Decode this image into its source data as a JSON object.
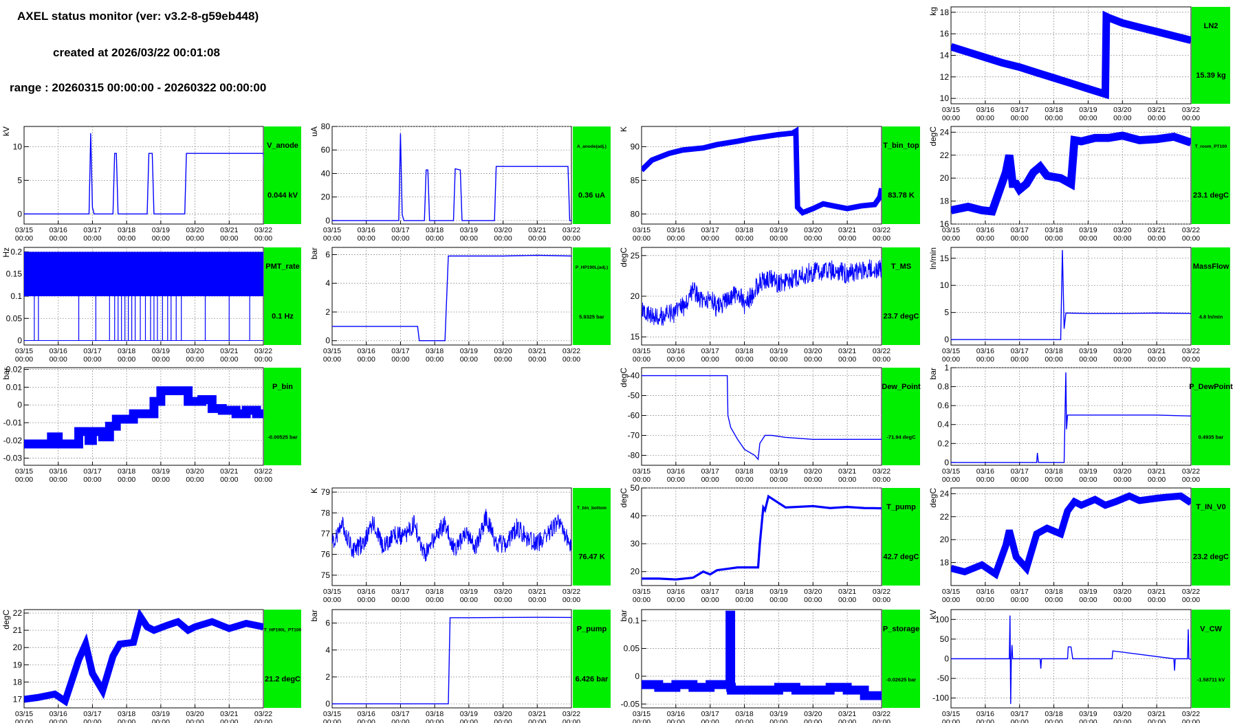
{
  "header": {
    "title": "AXEL status monitor (ver: v3.2-8-g59eb448)",
    "created": "created at 2026/03/22 00:01:08",
    "range": "range : 20260315 00:00:00 - 20260322 00:00:00"
  },
  "colors": {
    "line": "#0000ff",
    "box": "#00ee00",
    "grid": "#999999"
  },
  "x_ticks": [
    "03/15\n00:00",
    "03/16\n00:00",
    "03/17\n00:00",
    "03/18\n00:00",
    "03/19\n00:00",
    "03/20\n00:00",
    "03/21\n00:00",
    "03/22\n00:00"
  ],
  "chart_data": [
    {
      "type": "line",
      "name": "LN2",
      "value": "15.39 kg",
      "ylabel": "kg",
      "ylim": [
        9.5,
        18.5
      ],
      "yticks": [
        10,
        12,
        14,
        16,
        18
      ],
      "xlim": [
        0,
        7
      ],
      "x": [
        0,
        0.5,
        1,
        1.5,
        2,
        2.5,
        3,
        3.5,
        4,
        4.5,
        4.53,
        4.6,
        5,
        5.5,
        6,
        6.5,
        7
      ],
      "y": [
        14.8,
        14.3,
        13.8,
        13.3,
        12.9,
        12.4,
        11.9,
        11.4,
        10.9,
        10.4,
        17.6,
        17.5,
        17.0,
        16.6,
        16.2,
        15.8,
        15.4
      ],
      "band": 0.35
    },
    {
      "type": "line",
      "name": "V_anode",
      "value": "0.044 kV",
      "ylabel": "kV",
      "ylim": [
        -1.5,
        13
      ],
      "yticks": [
        0,
        5,
        10
      ],
      "xlim": [
        0,
        7
      ],
      "x": [
        0,
        1.9,
        1.95,
        2.0,
        2.05,
        2.1,
        2.6,
        2.65,
        2.7,
        2.75,
        3.6,
        3.65,
        3.75,
        3.8,
        4.7,
        4.75,
        7,
        7.05
      ],
      "y": [
        0,
        0,
        12,
        1,
        0,
        0,
        0,
        9,
        9,
        0,
        0,
        9,
        9,
        0,
        0,
        9,
        9,
        0
      ]
    },
    {
      "type": "line",
      "name": "A_anode(adj.)",
      "value": "0.36 uA",
      "ylabel": "uA",
      "ylim": [
        -3,
        80
      ],
      "yticks": [
        0,
        20,
        40,
        60,
        80
      ],
      "xlim": [
        0,
        7
      ],
      "x": [
        0,
        1.95,
        2.0,
        2.05,
        2.1,
        2.7,
        2.75,
        2.8,
        2.85,
        3.55,
        3.6,
        3.75,
        3.8,
        4.75,
        4.8,
        6.9,
        6.95,
        7
      ],
      "y": [
        0,
        0,
        74,
        5,
        0,
        0,
        43,
        43,
        0,
        0,
        44,
        43,
        0,
        0,
        46,
        46,
        0,
        0
      ]
    },
    {
      "type": "line",
      "name": "T_bin_top",
      "value": "83.78 K",
      "ylabel": "K",
      "ylim": [
        78.5,
        93
      ],
      "yticks": [
        80,
        85,
        90
      ],
      "xlim": [
        0,
        7
      ],
      "x": [
        0,
        0.3,
        0.8,
        1.2,
        1.8,
        2.2,
        2.8,
        3.2,
        3.6,
        4.0,
        4.4,
        4.5,
        4.55,
        4.7,
        5.0,
        5.3,
        5.6,
        6.0,
        6.4,
        6.8,
        6.95,
        7
      ],
      "y": [
        86.5,
        88,
        89,
        89.5,
        89.8,
        90.3,
        90.8,
        91.2,
        91.5,
        91.8,
        92,
        92.3,
        81,
        80.2,
        80.8,
        81.5,
        81.2,
        80.8,
        81.2,
        81.4,
        82.5,
        83.8
      ],
      "band": 0.4
    },
    {
      "type": "line",
      "name": "T_room_PT100",
      "value": "23.1 degC",
      "ylabel": "degC",
      "ylim": [
        16,
        24.5
      ],
      "yticks": [
        16,
        18,
        20,
        22,
        24
      ],
      "xlim": [
        0,
        7
      ],
      "x": [
        0,
        0.5,
        0.9,
        1.2,
        1.6,
        1.7,
        1.8,
        1.9,
        2.0,
        2.2,
        2.4,
        2.6,
        2.8,
        3.2,
        3.5,
        3.6,
        3.8,
        4.2,
        4.6,
        5.0,
        5.5,
        6.0,
        6.5,
        7
      ],
      "y": [
        17.2,
        17.5,
        17.2,
        17.1,
        20.5,
        22,
        19.5,
        19.5,
        19.0,
        19.5,
        20.5,
        21,
        20.2,
        20.0,
        19.5,
        23.3,
        23.2,
        23.5,
        23.5,
        23.7,
        23.3,
        23.4,
        23.6,
        23.1
      ],
      "band": 0.35
    },
    {
      "type": "band",
      "name": "PMT_rate",
      "value": "0.1 Hz",
      "ylabel": "Hz",
      "ylim": [
        -0.01,
        0.21
      ],
      "yticks": [
        0,
        0.05,
        0.1,
        0.15,
        0.2
      ],
      "xlim": [
        0,
        7
      ],
      "low": 0.1,
      "high": 0.2,
      "drops": [
        0.3,
        0.42,
        1.6,
        2.1,
        2.5,
        2.65,
        2.75,
        2.85,
        2.95,
        3.05,
        3.15,
        3.25,
        3.4,
        3.55,
        3.7,
        3.8,
        3.9,
        4.05,
        4.2,
        4.3,
        4.45,
        4.6,
        5.3,
        6.0,
        6.6
      ]
    },
    {
      "type": "line",
      "name": "P_HP190L(adj.)",
      "value": "5.9325 bar",
      "ylabel": "bar",
      "ylim": [
        -0.3,
        6.5
      ],
      "yticks": [
        0,
        2,
        4,
        6
      ],
      "xlim": [
        0,
        7
      ],
      "x": [
        0,
        2.5,
        2.55,
        3.3,
        3.4,
        4.0,
        5.0,
        6.0,
        7
      ],
      "y": [
        1,
        1,
        0,
        0,
        5.9,
        5.9,
        5.9,
        5.95,
        5.9
      ]
    },
    {
      "type": "noisy",
      "name": "T_MS",
      "value": "23.7 degC",
      "ylabel": "degC",
      "ylim": [
        14,
        26
      ],
      "yticks": [
        15,
        20,
        25
      ],
      "xlim": [
        0,
        7
      ],
      "x": [
        0,
        0.5,
        1.0,
        1.3,
        1.5,
        1.8,
        2.0,
        2.2,
        2.5,
        2.8,
        3.0,
        3.2,
        3.4,
        3.6,
        3.8,
        4.0,
        4.3,
        4.6,
        5.0,
        5.5,
        6.0,
        6.5,
        7
      ],
      "y": [
        18,
        17.5,
        18,
        19,
        21,
        19,
        20,
        18.5,
        19.5,
        20.5,
        19,
        20,
        21.5,
        22,
        22,
        21.5,
        22,
        22.5,
        23,
        23.2,
        22.8,
        23.3,
        23.5
      ],
      "amp": 2.5
    },
    {
      "type": "line",
      "name": "MassFlow",
      "value": "4.8 ln/min",
      "ylabel": "ln/min",
      "ylim": [
        -1,
        17
      ],
      "yticks": [
        0,
        5,
        10,
        15
      ],
      "xlim": [
        0,
        7
      ],
      "x": [
        0,
        3.2,
        3.25,
        3.3,
        3.35,
        3.4,
        4.0,
        5.0,
        6.0,
        7
      ],
      "y": [
        0,
        0,
        16.5,
        2,
        4.9,
        4.9,
        4.8,
        4.8,
        4.9,
        4.8
      ]
    },
    {
      "type": "line",
      "name": "P_bin",
      "value": "-0.00525 bar",
      "ylabel": "bar",
      "ylim": [
        -0.034,
        0.021
      ],
      "yticks": [
        -0.03,
        -0.02,
        -0.01,
        0,
        0.01,
        0.02
      ],
      "xlim": [
        0,
        7
      ],
      "x": [
        0,
        0.5,
        0.8,
        1.0,
        1.3,
        1.6,
        1.9,
        2.0,
        2.3,
        2.5,
        2.7,
        2.9,
        3.2,
        3.5,
        3.8,
        4.0,
        4.3,
        4.5,
        4.8,
        5.2,
        5.5,
        5.8,
        6.2,
        6.5,
        6.8,
        7
      ],
      "y": [
        -0.022,
        -0.022,
        -0.018,
        -0.022,
        -0.022,
        -0.015,
        -0.02,
        -0.015,
        -0.018,
        -0.012,
        -0.008,
        -0.008,
        -0.005,
        -0.005,
        0.002,
        0.008,
        0.008,
        0.008,
        0.002,
        0.003,
        -0.002,
        -0.003,
        -0.005,
        -0.003,
        -0.005,
        -0.005
      ],
      "band": 0.0025,
      "step": true
    },
    {
      "type": "line",
      "name": "Dew_Point",
      "value": "-71.94 degC",
      "ylabel": "degC",
      "ylim": [
        -85,
        -36
      ],
      "yticks": [
        -80,
        -70,
        -60,
        -50,
        -40
      ],
      "xlim": [
        0,
        7
      ],
      "x": [
        0,
        1.5,
        2.5,
        2.52,
        2.6,
        2.8,
        3.0,
        3.3,
        3.4,
        3.45,
        3.6,
        3.8,
        4.2,
        5.0,
        6.0,
        7
      ],
      "y": [
        -40,
        -40,
        -40,
        -60,
        -66,
        -72,
        -77,
        -80,
        -82,
        -74,
        -70,
        -70,
        -71,
        -72,
        -72,
        -72
      ]
    },
    {
      "type": "line",
      "name": "P_DewPoint",
      "value": "0.4935 bar",
      "ylabel": "bar",
      "ylim": [
        -0.03,
        1.0
      ],
      "yticks": [
        0,
        0.2,
        0.4,
        0.6,
        0.8,
        1
      ],
      "xlim": [
        0,
        7
      ],
      "x": [
        0,
        2.5,
        2.52,
        2.55,
        3.3,
        3.35,
        3.37,
        3.4,
        4.0,
        5.0,
        6.0,
        7
      ],
      "y": [
        0,
        0,
        0.1,
        0,
        0,
        0.95,
        0.35,
        0.5,
        0.5,
        0.5,
        0.5,
        0.49
      ]
    },
    {
      "type": "noisy",
      "name": "T_bin_bottom",
      "value": "76.47 K",
      "ylabel": "K",
      "ylim": [
        74.5,
        79.2
      ],
      "yticks": [
        75,
        76,
        77,
        78,
        79
      ],
      "xlim": [
        0,
        7
      ],
      "x": [
        0,
        0.3,
        0.6,
        0.9,
        1.2,
        1.5,
        1.8,
        2.1,
        2.4,
        2.7,
        3.0,
        3.3,
        3.6,
        3.9,
        4.2,
        4.5,
        4.8,
        5.1,
        5.4,
        5.7,
        6.0,
        6.3,
        6.6,
        7
      ],
      "y": [
        76.5,
        77.5,
        76.2,
        76.5,
        77.5,
        76.3,
        77.0,
        76.8,
        77.5,
        76.0,
        76.8,
        77.5,
        76.2,
        77.0,
        76.3,
        77.8,
        76.5,
        76.5,
        77.3,
        76.8,
        76.5,
        77.0,
        77.5,
        76.4
      ],
      "amp": 0.9
    },
    {
      "type": "line",
      "name": "T_pump",
      "value": "42.7 degC",
      "ylabel": "degC",
      "ylim": [
        15,
        50
      ],
      "yticks": [
        20,
        30,
        40,
        50
      ],
      "xlim": [
        0,
        7
      ],
      "x": [
        0,
        0.5,
        1.0,
        1.5,
        1.8,
        2.0,
        2.2,
        2.5,
        2.8,
        3.2,
        3.4,
        3.45,
        3.55,
        3.6,
        3.7,
        4.2,
        5.0,
        5.5,
        6.0,
        6.5,
        7
      ],
      "y": [
        17.5,
        17.5,
        17.2,
        17.8,
        20,
        19,
        20.5,
        21,
        21.5,
        21.5,
        21.5,
        30,
        43,
        42,
        47,
        43,
        43.5,
        42.8,
        43.2,
        42.8,
        42.7
      ],
      "band": 0.4
    },
    {
      "type": "line",
      "name": "T_IN_V0",
      "value": "23.2 degC",
      "ylabel": "degC",
      "ylim": [
        16,
        24.5
      ],
      "yticks": [
        18,
        20,
        22,
        24
      ],
      "xlim": [
        0,
        7
      ],
      "x": [
        0,
        0.4,
        0.9,
        1.3,
        1.6,
        1.7,
        1.9,
        2.2,
        2.5,
        2.8,
        3.2,
        3.4,
        3.6,
        3.8,
        4.2,
        4.5,
        4.8,
        5.2,
        5.5,
        6.0,
        6.3,
        6.7,
        7
      ],
      "y": [
        17.5,
        17.2,
        17.8,
        17.0,
        19.5,
        20.8,
        18.5,
        17.5,
        20.5,
        21.0,
        20.5,
        22.5,
        23.3,
        23.0,
        23.5,
        23.0,
        23.3,
        23.8,
        23.4,
        23.6,
        23.7,
        23.8,
        23.2
      ],
      "band": 0.3
    },
    {
      "type": "line",
      "name": "T_HP190L_PT100",
      "value": "21.2 degC",
      "ylabel": "degC",
      "ylim": [
        16.5,
        22.2
      ],
      "yticks": [
        17,
        18,
        19,
        20,
        21,
        22
      ],
      "xlim": [
        0,
        7
      ],
      "x": [
        0,
        0.4,
        0.9,
        1.2,
        1.6,
        1.8,
        2.0,
        2.3,
        2.6,
        2.8,
        3.2,
        3.4,
        3.6,
        3.8,
        4.2,
        4.5,
        4.8,
        5.0,
        5.5,
        6.0,
        6.5,
        7
      ],
      "y": [
        17,
        17.1,
        17.3,
        16.9,
        19.3,
        20.2,
        18.5,
        17.5,
        19.5,
        20.2,
        20.3,
        21.8,
        21.2,
        21.0,
        21.3,
        21.5,
        21.0,
        21.2,
        21.5,
        21.1,
        21.4,
        21.2
      ],
      "band": 0.2
    },
    {
      "type": "line",
      "name": "P_pump",
      "value": "6.426 bar",
      "ylabel": "bar",
      "ylim": [
        -0.3,
        7
      ],
      "yticks": [
        0,
        2,
        4,
        6
      ],
      "xlim": [
        0,
        7
      ],
      "x": [
        0,
        3.4,
        3.45,
        4.0,
        5.0,
        6.0,
        7
      ],
      "y": [
        0,
        0,
        6.4,
        6.4,
        6.42,
        6.43,
        6.42
      ]
    },
    {
      "type": "line",
      "name": "P_storage",
      "value": "-0.02625 bar",
      "ylabel": "bar",
      "ylim": [
        -0.057,
        0.12
      ],
      "yticks": [
        -0.05,
        0,
        0.05,
        0.1
      ],
      "xlim": [
        0,
        7
      ],
      "x": [
        0,
        0.5,
        1.0,
        1.5,
        2.0,
        2.5,
        2.58,
        2.6,
        2.62,
        3.0,
        3.5,
        4.0,
        4.5,
        5.0,
        5.5,
        6.0,
        6.5,
        7
      ],
      "y": [
        -0.015,
        -0.02,
        -0.015,
        -0.02,
        -0.015,
        -0.015,
        0.11,
        -0.02,
        -0.025,
        -0.025,
        -0.025,
        -0.02,
        -0.025,
        -0.025,
        -0.02,
        -0.025,
        -0.035,
        -0.028
      ],
      "band": 0.008,
      "step": true
    },
    {
      "type": "line",
      "name": "V_CW",
      "value": "-1.58711 kV",
      "ylabel": "kV",
      "ylim": [
        -125,
        125
      ],
      "yticks": [
        -100,
        -50,
        0,
        50,
        100
      ],
      "xlim": [
        0,
        7
      ],
      "x": [
        0,
        1.7,
        1.72,
        1.74,
        1.76,
        1.78,
        1.8,
        1.82,
        2.6,
        2.62,
        2.64,
        3.4,
        3.42,
        3.5,
        3.55,
        4.7,
        4.72,
        6.5,
        6.52,
        6.54,
        6.9,
        6.92,
        6.94,
        7
      ],
      "y": [
        0,
        0,
        110,
        -115,
        0,
        35,
        0,
        0,
        0,
        -25,
        0,
        0,
        30,
        30,
        0,
        0,
        20,
        0,
        -30,
        0,
        0,
        75,
        0,
        -2
      ]
    }
  ]
}
